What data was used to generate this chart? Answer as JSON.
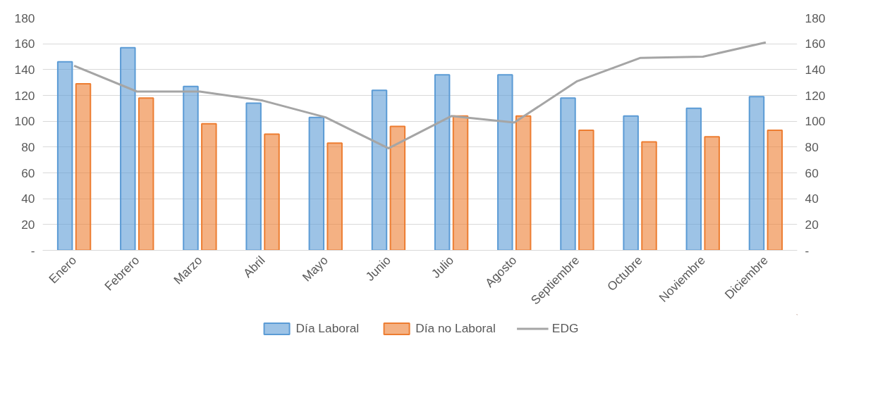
{
  "chart_data": {
    "type": "bar",
    "categories": [
      "Enero",
      "Febrero",
      "Marzo",
      "Abril",
      "Mayo",
      "Junio",
      "Julio",
      "Agosto",
      "Septiembre",
      "Octubre",
      "Noviembre",
      "Diciembre"
    ],
    "series": [
      {
        "name": "Día Laboral",
        "color": "#5b9bd5",
        "values": [
          146,
          157,
          127,
          114,
          103,
          124,
          136,
          136,
          118,
          104,
          110,
          119
        ]
      },
      {
        "name": "Día no Laboral",
        "color": "#ed7d31",
        "values": [
          129,
          118,
          98,
          90,
          83,
          96,
          104,
          104,
          93,
          84,
          88,
          93
        ]
      },
      {
        "name": "EDG",
        "type": "line",
        "axis": "y2",
        "color": "#a5a5a5",
        "values": [
          143,
          123,
          123,
          116,
          103,
          79,
          104,
          99,
          131,
          149,
          150,
          161
        ]
      }
    ],
    "ylim": [
      0,
      180
    ],
    "yticks": [
      {
        "value": 0,
        "label": "-"
      },
      20,
      40,
      60,
      80,
      100,
      120,
      140,
      160,
      180
    ],
    "y2lim": [
      0,
      180
    ],
    "y2ticks": [
      {
        "value": 0,
        "label": "-"
      },
      20,
      40,
      60,
      80,
      100,
      120,
      140,
      160,
      180
    ],
    "grid": "y",
    "legend": "bottom",
    "marker": "none",
    "line_style": "solid"
  }
}
